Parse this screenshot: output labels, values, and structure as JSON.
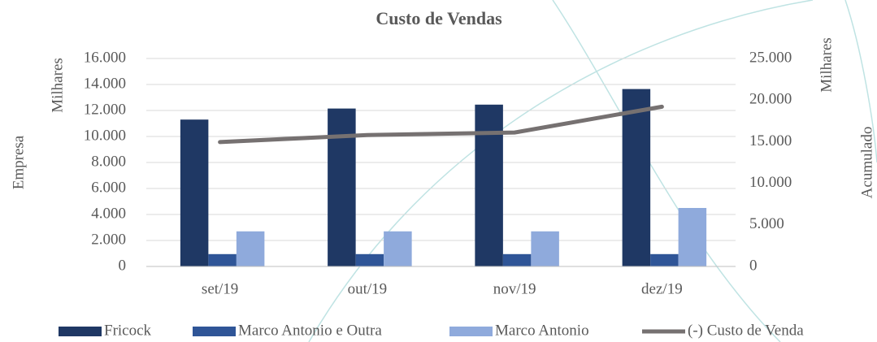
{
  "chart_data": {
    "type": "bar",
    "title": "Custo de Vendas",
    "categories": [
      "set/19",
      "out/19",
      "nov/19",
      "dez/19"
    ],
    "series": [
      {
        "name": "Fricock",
        "color": "#1f3864",
        "values": [
          11300,
          12150,
          12450,
          13650
        ]
      },
      {
        "name": "Marco Antonio e Outra",
        "color": "#2f5597",
        "values": [
          950,
          950,
          950,
          950
        ]
      },
      {
        "name": "Marco Antonio",
        "color": "#8faadc",
        "values": [
          2700,
          2700,
          2700,
          4500
        ]
      },
      {
        "name": "(-) Custo de Venda",
        "color": "#767171",
        "type": "line",
        "axis": "y2",
        "values": [
          14950,
          15800,
          16100,
          19200
        ]
      }
    ],
    "ylabel": "Empresa",
    "yunit": "Milhares",
    "y2label": "Acumulado",
    "y2unit": "Milhares",
    "ylim": [
      0,
      16000
    ],
    "yticks": [
      0,
      {
        "value": 2000,
        "label": "2.000"
      },
      {
        "value": 4000,
        "label": "4.000"
      },
      {
        "value": 6000,
        "label": "6.000"
      },
      {
        "value": 8000,
        "label": "8.000"
      },
      {
        "value": 10000,
        "label": "10.000"
      },
      {
        "value": 12000,
        "label": "12.000"
      },
      {
        "value": 14000,
        "label": "14.000"
      },
      {
        "value": 16000,
        "label": "16.000"
      }
    ],
    "y2lim": [
      0,
      25000
    ],
    "y2ticks": [
      0,
      {
        "value": 5000,
        "label": "5.000"
      },
      {
        "value": 10000,
        "label": "10.000"
      },
      {
        "value": 15000,
        "label": "15.000"
      },
      {
        "value": 20000,
        "label": "20.000"
      },
      {
        "value": 25000,
        "label": "25.000"
      }
    ],
    "grid": true,
    "legend": "bottom"
  }
}
